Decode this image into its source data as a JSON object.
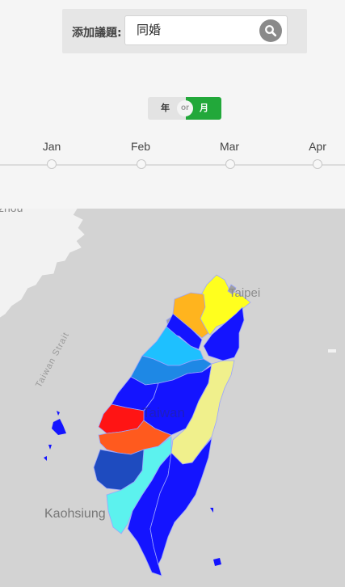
{
  "search": {
    "label": "添加議題:",
    "value": "同婚",
    "button_icon": "search-icon"
  },
  "toggle": {
    "year_label": "年",
    "or_label": "or",
    "month_label": "月",
    "selected": "月",
    "selected_color": "#22a83a"
  },
  "timeline": {
    "months": [
      "Jan",
      "Feb",
      "Mar",
      "Apr"
    ]
  },
  "map": {
    "labels": {
      "city_top_left": "zhou",
      "strait": "Taiwan Strait",
      "city_north": "Taipei",
      "island": "Taiwan",
      "city_south": "Kaohsiung"
    },
    "region_colors": {
      "blue": "#1414ff",
      "dark_blue": "#1e4bbf",
      "mid_blue": "#1e88e5",
      "light_blue": "#1ec0ff",
      "cyan": "#5cf2ee",
      "yellow": "#ffff1e",
      "orange": "#ffb41e",
      "red": "#ff1414",
      "red_orange": "#ff5a1e",
      "pale_yellow": "#f0f08c",
      "gray": "#a0a0a0"
    }
  }
}
